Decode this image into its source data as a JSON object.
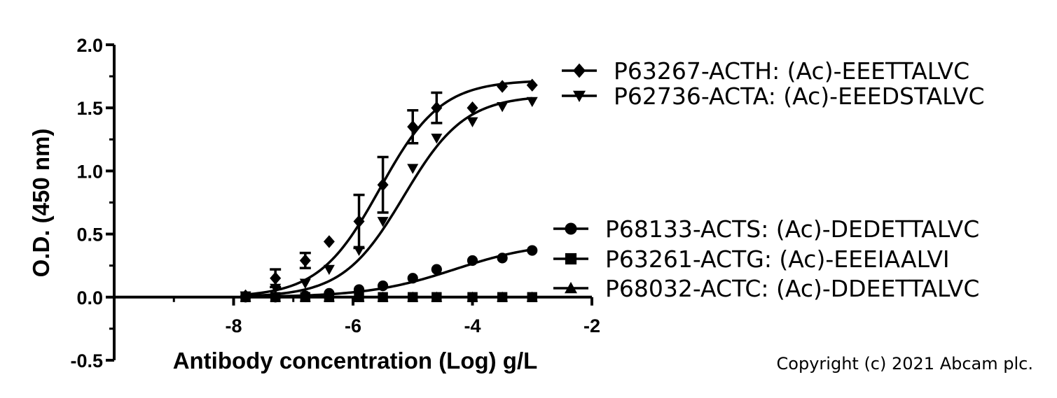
{
  "chart_data": {
    "type": "scatter",
    "xlabel": "Antibody concentration (Log) g/L",
    "ylabel": "O.D. (450 nm)",
    "xlim": [
      -10,
      -2
    ],
    "ylim": [
      -0.5,
      2.0
    ],
    "xticks": [
      "-8",
      "-6",
      "-4",
      "-2"
    ],
    "yticks": [
      "2.0",
      "1.5",
      "1.0",
      "0.5",
      "0.0",
      "-0.5"
    ],
    "legend_position": "right",
    "grid": false,
    "series": [
      {
        "name": "P63267-ACTH: (Ac)-EEETTALVC",
        "marker": "diamond",
        "x": [
          -7.8,
          -7.3,
          -6.8,
          -6.4,
          -5.9,
          -5.5,
          -5.0,
          -4.6,
          -4.0,
          -3.5,
          -3.0
        ],
        "y": [
          0.01,
          0.15,
          0.29,
          0.44,
          0.6,
          0.89,
          1.35,
          1.5,
          1.5,
          1.67,
          1.68
        ],
        "err": [
          0.0,
          0.07,
          0.06,
          0.0,
          0.21,
          0.22,
          0.13,
          0.12,
          0.0,
          0.0,
          0.0
        ],
        "fit": {
          "bottom": 0.0,
          "top": 1.72,
          "logEC50": -5.55,
          "hill": 0.85
        }
      },
      {
        "name": "P62736-ACTA: (Ac)-EEEDSTALVC",
        "marker": "triangle-down",
        "x": [
          -7.8,
          -7.3,
          -6.8,
          -6.4,
          -5.9,
          -5.5,
          -5.0,
          -4.6,
          -4.0,
          -3.5,
          -3.0
        ],
        "y": [
          0.01,
          0.07,
          0.11,
          0.22,
          0.37,
          0.6,
          1.02,
          1.26,
          1.39,
          1.51,
          1.55
        ],
        "err": [
          0.0,
          0.0,
          0.0,
          0.0,
          0.0,
          0.0,
          0.0,
          0.0,
          0.0,
          0.0,
          0.0
        ],
        "fit": {
          "bottom": 0.0,
          "top": 1.6,
          "logEC50": -5.15,
          "hill": 0.85
        }
      },
      {
        "name": "P68133-ACTS: (Ac)-DEDETTALVC",
        "marker": "circle",
        "x": [
          -7.8,
          -7.3,
          -6.8,
          -6.4,
          -5.9,
          -5.5,
          -5.0,
          -4.6,
          -4.0,
          -3.5,
          -3.0
        ],
        "y": [
          0.0,
          0.0,
          0.01,
          0.03,
          0.06,
          0.09,
          0.15,
          0.22,
          0.29,
          0.31,
          0.37
        ],
        "err": [
          0.0,
          0.0,
          0.0,
          0.0,
          0.0,
          0.0,
          0.0,
          0.0,
          0.0,
          0.0,
          0.0
        ],
        "fit": {
          "bottom": 0.0,
          "top": 0.44,
          "logEC50": -4.3,
          "hill": 0.6
        }
      },
      {
        "name": "P63261-ACTG: (Ac)-EEEIAALVI",
        "marker": "square",
        "x": [
          -7.8,
          -7.3,
          -6.8,
          -6.4,
          -5.9,
          -5.5,
          -5.0,
          -4.6,
          -4.0,
          -3.5,
          -3.0
        ],
        "y": [
          0.0,
          0.0,
          0.0,
          0.0,
          0.0,
          0.0,
          0.0,
          0.0,
          0.0,
          0.0,
          0.0
        ],
        "err": [
          0.0,
          0.0,
          0.0,
          0.0,
          0.0,
          0.0,
          0.0,
          0.0,
          0.0,
          0.0,
          0.0
        ],
        "fit": {
          "bottom": 0.0,
          "top": 0.0,
          "logEC50": -5.0,
          "hill": 1.0
        }
      },
      {
        "name": "P68032-ACTC: (Ac)-DDEETTALVC",
        "marker": "triangle-up",
        "x": [
          -7.8,
          -7.3,
          -6.8,
          -6.4,
          -5.9,
          -5.5,
          -5.0,
          -4.6,
          -4.0,
          -3.5,
          -3.0
        ],
        "y": [
          0.0,
          0.0,
          0.0,
          0.0,
          0.0,
          0.0,
          0.0,
          0.0,
          0.0,
          0.0,
          0.0
        ],
        "err": [
          0.0,
          0.0,
          0.0,
          0.0,
          0.0,
          0.0,
          0.0,
          0.0,
          0.0,
          0.0,
          0.0
        ],
        "fit": {
          "bottom": 0.0,
          "top": 0.0,
          "logEC50": -5.0,
          "hill": 1.0
        }
      }
    ]
  },
  "copyright": "Copyright (c) 2021 Abcam plc."
}
